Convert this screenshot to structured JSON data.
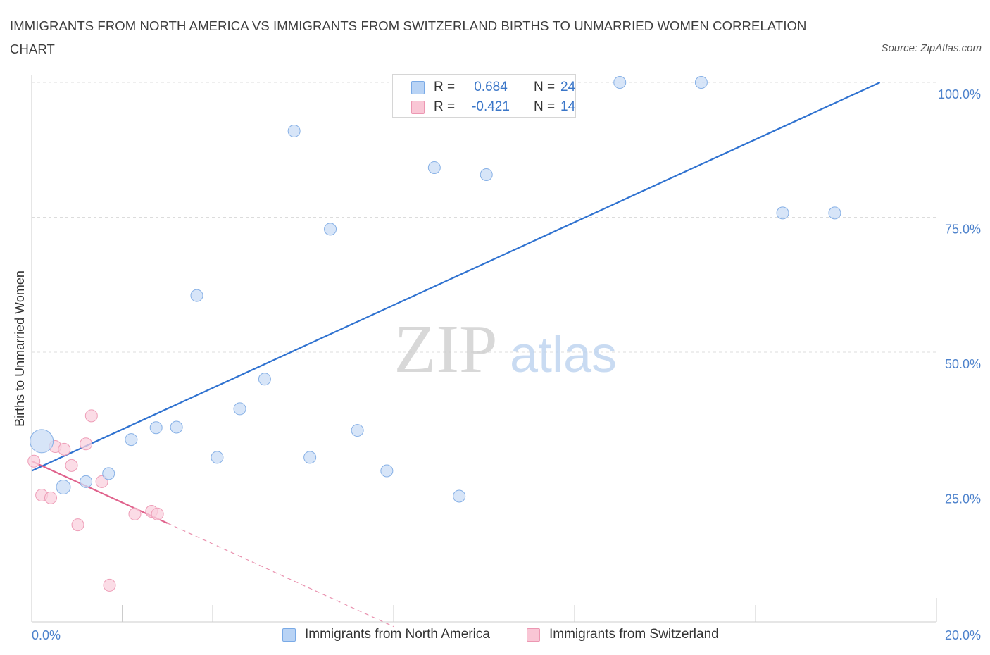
{
  "title": "IMMIGRANTS FROM NORTH AMERICA VS IMMIGRANTS FROM SWITZERLAND BIRTHS TO UNMARRIED WOMEN CORRELATION CHART",
  "source": "Source: ZipAtlas.com",
  "watermark": {
    "zip": "ZIP",
    "atlas": "atlas"
  },
  "legend": {
    "r_label": "R =",
    "n_label": "N =",
    "rows": [
      {
        "r": "0.684",
        "n": "24",
        "fill": "#b8d3f5",
        "stroke": "#7aaae6"
      },
      {
        "r": "-0.421",
        "n": "14",
        "fill": "#f9c6d5",
        "stroke": "#ec97b2"
      }
    ]
  },
  "colors": {
    "blue_fill": "#c9dcf5",
    "blue_stroke": "#86b0e6",
    "blue_line": "#2f72d0",
    "pink_fill": "#f9d0dd",
    "pink_stroke": "#ee9db7",
    "pink_line": "#e0628c",
    "tick_text": "#4d82cc",
    "grid": "#dcdcdc"
  },
  "chart_data": {
    "type": "scatter",
    "title": "IMMIGRANTS FROM NORTH AMERICA VS IMMIGRANTS FROM SWITZERLAND BIRTHS TO UNMARRIED WOMEN CORRELATION CHART",
    "xlabel": "",
    "ylabel": "Births to Unmarried Women",
    "xlim": [
      0,
      20
    ],
    "ylim": [
      0,
      100
    ],
    "x_ticks": [
      "0.0%",
      "20.0%"
    ],
    "y_ticks": [
      {
        "value": 25,
        "label": "25.0%"
      },
      {
        "value": 50,
        "label": "50.0%"
      },
      {
        "value": 75,
        "label": "75.0%"
      },
      {
        "value": 100,
        "label": "100.0%"
      }
    ],
    "grid": true,
    "legend_position": "top-center",
    "series": [
      {
        "name": "Immigrants from North America",
        "color": "#86b0e6",
        "points": [
          {
            "x": 0.22,
            "y": 33.5,
            "size": "large"
          },
          {
            "x": 0.7,
            "y": 25.0
          },
          {
            "x": 1.2,
            "y": 26.0
          },
          {
            "x": 1.7,
            "y": 27.5
          },
          {
            "x": 2.2,
            "y": 33.8
          },
          {
            "x": 2.75,
            "y": 36.0
          },
          {
            "x": 3.2,
            "y": 36.1
          },
          {
            "x": 3.65,
            "y": 60.5
          },
          {
            "x": 4.1,
            "y": 30.5
          },
          {
            "x": 4.6,
            "y": 39.5
          },
          {
            "x": 5.15,
            "y": 45.0
          },
          {
            "x": 5.8,
            "y": 91.0
          },
          {
            "x": 6.15,
            "y": 30.5
          },
          {
            "x": 6.6,
            "y": 72.8
          },
          {
            "x": 7.2,
            "y": 35.5
          },
          {
            "x": 7.85,
            "y": 28.0
          },
          {
            "x": 8.9,
            "y": 84.2
          },
          {
            "x": 9.45,
            "y": 23.3
          },
          {
            "x": 10.0,
            "y": 100.0
          },
          {
            "x": 10.05,
            "y": 82.9
          },
          {
            "x": 13.0,
            "y": 100.0
          },
          {
            "x": 14.8,
            "y": 100.0
          },
          {
            "x": 16.6,
            "y": 75.8
          },
          {
            "x": 17.75,
            "y": 75.8
          }
        ],
        "trend": {
          "x0": 0.0,
          "y0": 28.0,
          "x1": 18.75,
          "y1": 100.0
        }
      },
      {
        "name": "Immigrants from Switzerland",
        "color": "#ee9db7",
        "points": [
          {
            "x": 0.05,
            "y": 29.8
          },
          {
            "x": 0.22,
            "y": 23.5
          },
          {
            "x": 0.42,
            "y": 23.0
          },
          {
            "x": 0.52,
            "y": 32.5
          },
          {
            "x": 0.72,
            "y": 32.0
          },
          {
            "x": 0.88,
            "y": 29.0
          },
          {
            "x": 1.02,
            "y": 18.0
          },
          {
            "x": 1.2,
            "y": 33.0
          },
          {
            "x": 1.32,
            "y": 38.2
          },
          {
            "x": 1.55,
            "y": 26.0
          },
          {
            "x": 1.72,
            "y": 6.8
          },
          {
            "x": 2.28,
            "y": 20.0
          },
          {
            "x": 2.65,
            "y": 20.5
          },
          {
            "x": 2.78,
            "y": 20.0
          }
        ],
        "trend": {
          "x0": 0.0,
          "y0": 29.8,
          "x1": 3.0,
          "y1": 18.3,
          "dash_to_x": 8.0
        }
      }
    ]
  },
  "bottom_legend": [
    {
      "label": "Immigrants from North America"
    },
    {
      "label": "Immigrants from Switzerland"
    }
  ]
}
